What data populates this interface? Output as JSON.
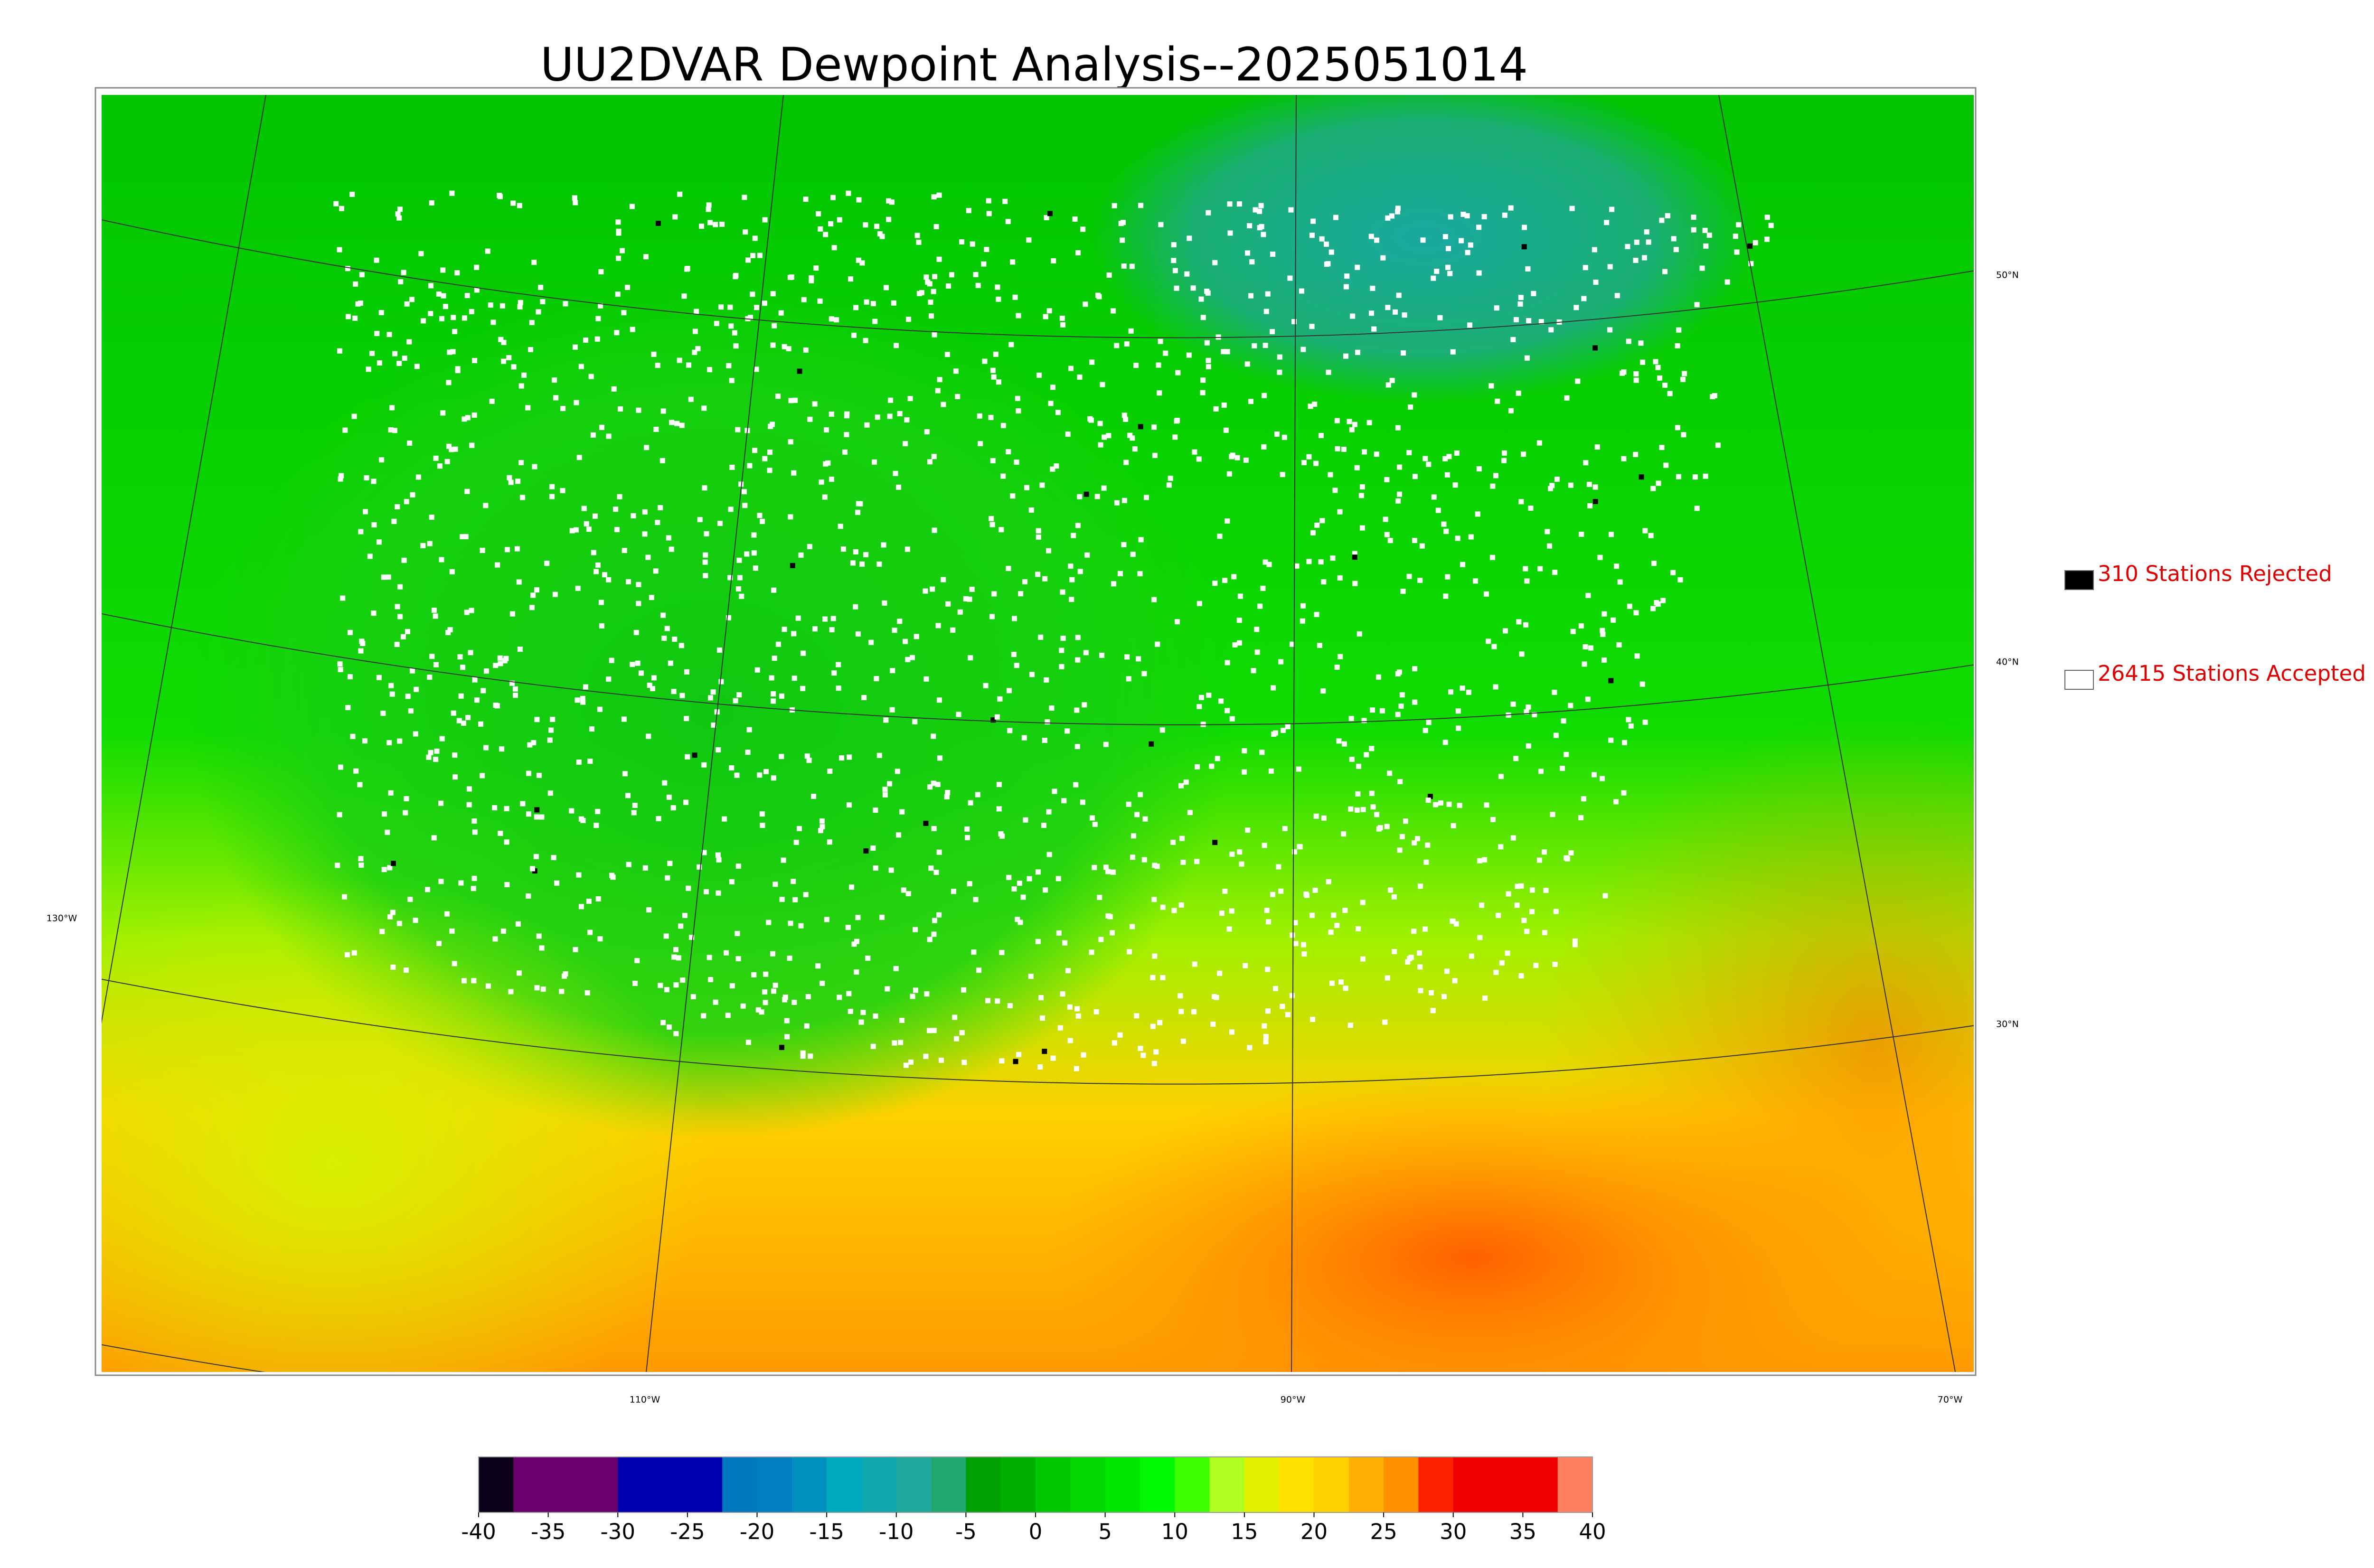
{
  "title": "UU2DVAR Dewpoint Analysis--2025051014",
  "legend": [
    {
      "label": "310 Stations Rejected",
      "color": "#000000"
    },
    {
      "label": "26415 Stations Accepted",
      "color": "#ffffff"
    }
  ],
  "colorbar": {
    "lim": [
      -40,
      40
    ],
    "ticks": [
      -40,
      -35,
      -30,
      -25,
      -20,
      -15,
      -10,
      -5,
      0,
      5,
      10,
      15,
      20,
      25,
      30,
      35,
      40
    ],
    "colors": [
      "#0a0018",
      "#6a0070",
      "#6a0070",
      "#6a0070",
      "#0000b0",
      "#0000b0",
      "#0000b0",
      "#0078c0",
      "#0080c0",
      "#0090c0",
      "#00a8c0",
      "#10a8b0",
      "#20a8a0",
      "#20a870",
      "#00a000",
      "#00b000",
      "#00c800",
      "#00d800",
      "#00e800",
      "#00f800",
      "#40ff00",
      "#b0ff20",
      "#e0f000",
      "#ffe000",
      "#ffd000",
      "#ffb000",
      "#ff9000",
      "#ff2000",
      "#f00000",
      "#f00000",
      "#f00000",
      "#ff8060"
    ]
  },
  "graticule": {
    "lon_labels": [
      "130°W",
      "110°W",
      "90°W",
      "70°W"
    ],
    "lat_labels": [
      "50°N",
      "40°N",
      "30°N"
    ]
  }
}
